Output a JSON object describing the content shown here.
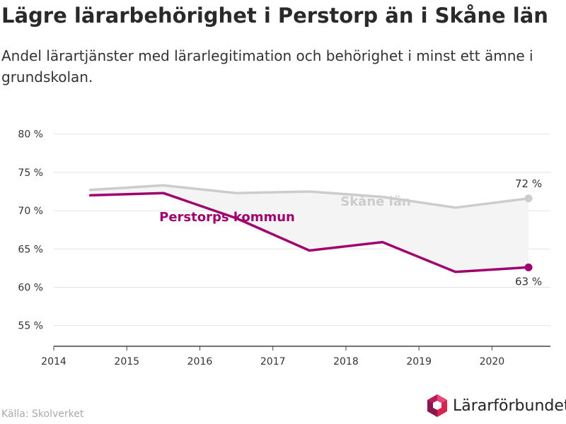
{
  "title": "Lägre lärarbehörighet i Perstorp än i Skåne län",
  "subtitle": "Andel lärartjänster med lärarlegitimation och behörighet i minst ett ämne i grundskolan.",
  "source": "Källa: Skolverket",
  "brand": {
    "name": "Lärarförbundet"
  },
  "colors": {
    "perstorp": "#a0006e",
    "skane": "#cccccc",
    "gap_fill": "#f4f4f4",
    "grid": "#e3e3e3",
    "axis": "#444444"
  },
  "chart_data": {
    "type": "line",
    "x_ticks": [
      "2014",
      "2015",
      "2016",
      "2017",
      "2018",
      "2019",
      "2020"
    ],
    "y_ticks": [
      "55 %",
      "60 %",
      "65 %",
      "70 %",
      "75 %",
      "80 %"
    ],
    "xlim": [
      2014,
      2020.8
    ],
    "ylim": [
      52.3,
      82
    ],
    "grid": "horizontal",
    "x": [
      2014.5,
      2015.5,
      2016.5,
      2017.5,
      2018.5,
      2019.5,
      2020.5
    ],
    "series": [
      {
        "key": "skane",
        "name": "Skåne län",
        "values": [
          72.7,
          73.3,
          72.3,
          72.5,
          71.8,
          70.4,
          71.6
        ],
        "end_label": "72 %"
      },
      {
        "key": "perstorp",
        "name": "Perstorps kommun",
        "values": [
          72.0,
          72.3,
          69.0,
          64.8,
          65.9,
          62.0,
          62.6
        ],
        "end_label": "63 %"
      }
    ]
  }
}
